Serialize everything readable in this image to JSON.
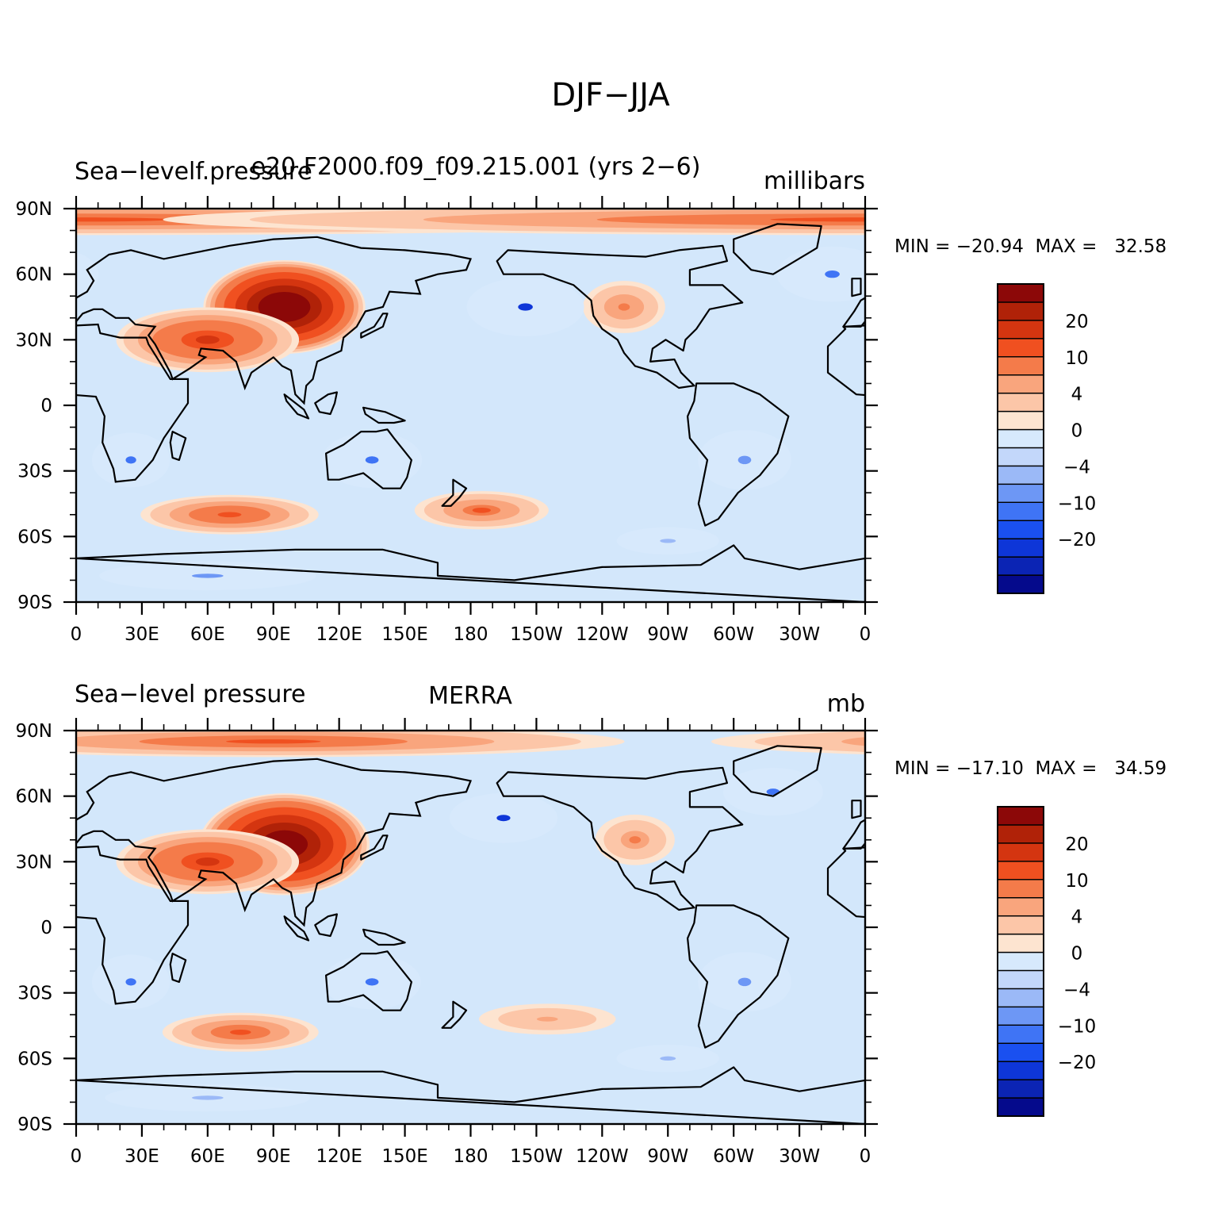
{
  "figure_title": "DJF−JJA",
  "colors": {
    "ocean_base": "#d3e7fb",
    "land_outline": "#000000",
    "frame": "#000000"
  },
  "colorbar": {
    "colors": [
      "#050a8c",
      "#0b24b4",
      "#0e36d8",
      "#1a50f0",
      "#3f74f5",
      "#6d97f5",
      "#9bb9f7",
      "#c3d7fa",
      "#d7e9fc",
      "#fde4d0",
      "#fcc6a8",
      "#f9a57d",
      "#f47b4a",
      "#f05020",
      "#d43510",
      "#b02208",
      "#8c0808"
    ],
    "labels": [
      "20",
      "10",
      "4",
      "0",
      "−4",
      "−10",
      "−20"
    ]
  },
  "chart_data": [
    {
      "type": "heatmap",
      "left_string": "Sea−levelf.pressure",
      "center_string": "e20.F2000.f09_f09.215.001 (yrs 2−6)",
      "right_string": "millibars",
      "min_max_text": "MIN = −20.94  MAX =   32.58",
      "min": -20.94,
      "max": 32.58,
      "contour_levels": [
        -25,
        -20,
        -15,
        -10,
        -6,
        -4,
        -2,
        -1,
        0,
        1,
        2,
        4,
        6,
        10,
        15,
        20,
        25
      ],
      "x_axis": {
        "labels": [
          "0",
          "30E",
          "60E",
          "90E",
          "120E",
          "150E",
          "180",
          "150W",
          "120W",
          "90W",
          "60W",
          "30W",
          "0"
        ],
        "lon_range": [
          0,
          360
        ]
      },
      "y_axis": {
        "labels": [
          "90N",
          "60N",
          "30N",
          "0",
          "30S",
          "60S",
          "90S"
        ],
        "lat_range": [
          -90,
          90
        ]
      },
      "anomalies": [
        {
          "lon": 95,
          "lat": 45,
          "value": 32,
          "rlon": 38,
          "rlat": 22
        },
        {
          "lon": 60,
          "lat": 30,
          "value": 12,
          "rlon": 45,
          "rlat": 16
        },
        {
          "lon": 250,
          "lat": 45,
          "value": 6,
          "rlon": 22,
          "rlat": 14
        },
        {
          "lon": 205,
          "lat": 45,
          "value": -20,
          "rlon": 28,
          "rlat": 14
        },
        {
          "lon": 345,
          "lat": 60,
          "value": -9,
          "rlon": 28,
          "rlat": 14
        },
        {
          "lon": 25,
          "lat": -25,
          "value": -8,
          "rlon": 20,
          "rlat": 14
        },
        {
          "lon": 135,
          "lat": -25,
          "value": -10,
          "rlon": 25,
          "rlat": 14
        },
        {
          "lon": 305,
          "lat": -25,
          "value": -6,
          "rlon": 25,
          "rlat": 16
        },
        {
          "lon": 70,
          "lat": -50,
          "value": 9,
          "rlon": 45,
          "rlat": 10
        },
        {
          "lon": 185,
          "lat": -48,
          "value": 7,
          "rlon": 35,
          "rlat": 10
        },
        {
          "lon": 60,
          "lat": -78,
          "value": -5,
          "rlon": 60,
          "rlat": 8
        },
        {
          "lon": 270,
          "lat": -62,
          "value": -4,
          "rlon": 30,
          "rlat": 8
        },
        {
          "lon": 0,
          "lat": 85,
          "value": 8,
          "rlon": 360,
          "rlat": 8
        }
      ]
    },
    {
      "type": "heatmap",
      "left_string": "Sea−level pressure",
      "center_string": "MERRA",
      "right_string": "mb",
      "min_max_text": "MIN = −17.10  MAX =   34.59",
      "min": -17.1,
      "max": 34.59,
      "contour_levels": [
        -25,
        -20,
        -15,
        -10,
        -6,
        -4,
        -2,
        -1,
        0,
        1,
        2,
        4,
        6,
        10,
        15,
        20,
        25
      ],
      "x_axis": {
        "labels": [
          "0",
          "30E",
          "60E",
          "90E",
          "120E",
          "150E",
          "180",
          "150W",
          "120W",
          "90W",
          "60W",
          "30W",
          "0"
        ],
        "lon_range": [
          0,
          360
        ]
      },
      "y_axis": {
        "labels": [
          "90N",
          "60N",
          "30N",
          "0",
          "30S",
          "60S",
          "90S"
        ],
        "lat_range": [
          -90,
          90
        ]
      },
      "anomalies": [
        {
          "lon": 95,
          "lat": 38,
          "value": 30,
          "rlon": 40,
          "rlat": 24
        },
        {
          "lon": 60,
          "lat": 30,
          "value": 12,
          "rlon": 45,
          "rlat": 16
        },
        {
          "lon": 255,
          "lat": 40,
          "value": 5,
          "rlon": 22,
          "rlat": 14
        },
        {
          "lon": 195,
          "lat": 50,
          "value": -17,
          "rlon": 26,
          "rlat": 12
        },
        {
          "lon": 318,
          "lat": 62,
          "value": -10,
          "rlon": 25,
          "rlat": 12
        },
        {
          "lon": 25,
          "lat": -25,
          "value": -8,
          "rlon": 20,
          "rlat": 14
        },
        {
          "lon": 135,
          "lat": -25,
          "value": -8,
          "rlon": 25,
          "rlat": 14
        },
        {
          "lon": 305,
          "lat": -25,
          "value": -6,
          "rlon": 25,
          "rlat": 16
        },
        {
          "lon": 75,
          "lat": -48,
          "value": 8,
          "rlon": 40,
          "rlat": 10
        },
        {
          "lon": 215,
          "lat": -42,
          "value": 4,
          "rlon": 40,
          "rlat": 9
        },
        {
          "lon": 60,
          "lat": -78,
          "value": -4,
          "rlon": 60,
          "rlat": 8
        },
        {
          "lon": 270,
          "lat": -60,
          "value": -4,
          "rlon": 30,
          "rlat": 8
        },
        {
          "lon": 90,
          "lat": 85,
          "value": 8,
          "rlon": 180,
          "rlat": 8
        }
      ]
    }
  ]
}
